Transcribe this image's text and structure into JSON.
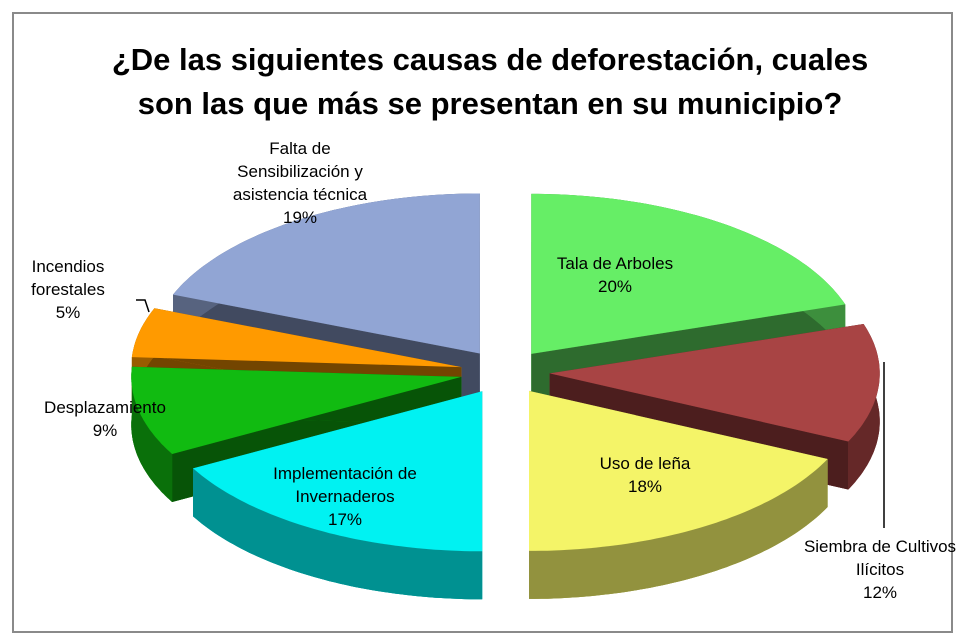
{
  "chart_data": {
    "type": "pie",
    "title": "¿De las siguientes causas de deforestación, cuales son las que más se presentan en su municipio?",
    "categories": [
      "Tala de Arboles",
      "Siembra de Cultivos Ilícitos",
      "Uso de leña",
      "Implementación de Invernaderos",
      "Desplazamiento",
      "Incendios forestales",
      "Falta de Sensibilización y asistencia técnica"
    ],
    "values": [
      20,
      12,
      18,
      17,
      9,
      5,
      19
    ],
    "value_labels": [
      "20%",
      "12%",
      "18%",
      "17%",
      "9%",
      "5%",
      "19%"
    ],
    "colors": [
      "#66ee66",
      "#a84444",
      "#f4f468",
      "#00f2f2",
      "#11bb11",
      "#ff9a00",
      "#91a5d4"
    ]
  }
}
